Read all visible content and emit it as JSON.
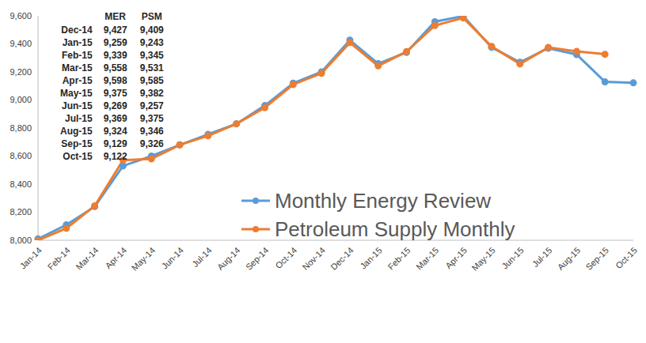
{
  "chart_data": {
    "type": "line",
    "categories": [
      "Jan-14",
      "Feb-14",
      "Mar-14",
      "Apr-14",
      "May-14",
      "Jun-14",
      "Jul-14",
      "Aug-14",
      "Sep-14",
      "Oct-14",
      "Nov-14",
      "Dec-14",
      "Jan-15",
      "Feb-15",
      "Mar-15",
      "Apr-15",
      "May-15",
      "Jun-15",
      "Jul-15",
      "Aug-15",
      "Sep-15",
      "Oct-15"
    ],
    "series": [
      {
        "name": "Monthly Energy Review",
        "color": "#5b9bd5",
        "marker": "circle",
        "line_style": "solid",
        "values": [
          8010,
          8110,
          8240,
          8530,
          8600,
          8680,
          8755,
          8830,
          8960,
          9120,
          9200,
          9427,
          9259,
          9339,
          9558,
          9598,
          9375,
          9269,
          9369,
          9324,
          9129,
          9122
        ]
      },
      {
        "name": "Petroleum Supply Monthly",
        "color": "#ed7d31",
        "marker": "circle",
        "line_style": "solid",
        "values": [
          8000,
          8085,
          8245,
          8570,
          8580,
          8680,
          8745,
          8830,
          8945,
          9110,
          9190,
          9409,
          9243,
          9345,
          9531,
          9585,
          9382,
          9257,
          9375,
          9346,
          9326,
          null
        ]
      }
    ],
    "ylim": [
      8000,
      9600
    ],
    "yticks": [
      {
        "value": 8000,
        "label": "8,000"
      },
      {
        "value": 8200,
        "label": "8,200"
      },
      {
        "value": 8400,
        "label": "8,400"
      },
      {
        "value": 8600,
        "label": "8,600"
      },
      {
        "value": 8800,
        "label": "8,800"
      },
      {
        "value": 9000,
        "label": "9,000"
      },
      {
        "value": 9200,
        "label": "9,200"
      },
      {
        "value": 9400,
        "label": "9,400"
      },
      {
        "value": 9600,
        "label": "9,600"
      }
    ],
    "grid": false,
    "legend": "right",
    "table": {
      "columns": [
        "MER",
        "PSM"
      ],
      "rows": [
        {
          "label": "Dec-14",
          "values": [
            "9,427",
            "9,409"
          ]
        },
        {
          "label": "Jan-15",
          "values": [
            "9,259",
            "9,243"
          ]
        },
        {
          "label": "Feb-15",
          "values": [
            "9,339",
            "9,345"
          ]
        },
        {
          "label": "Mar-15",
          "values": [
            "9,558",
            "9,531"
          ]
        },
        {
          "label": "Apr-15",
          "values": [
            "9,598",
            "9,585"
          ]
        },
        {
          "label": "May-15",
          "values": [
            "9,375",
            "9,382"
          ]
        },
        {
          "label": "Jun-15",
          "values": [
            "9,269",
            "9,257"
          ]
        },
        {
          "label": "Jul-15",
          "values": [
            "9,369",
            "9,375"
          ]
        },
        {
          "label": "Aug-15",
          "values": [
            "9,324",
            "9,346"
          ]
        },
        {
          "label": "Sep-15",
          "values": [
            "9,129",
            "9,326"
          ]
        },
        {
          "label": "Oct-15",
          "values": [
            "9,122"
          ]
        }
      ]
    }
  }
}
